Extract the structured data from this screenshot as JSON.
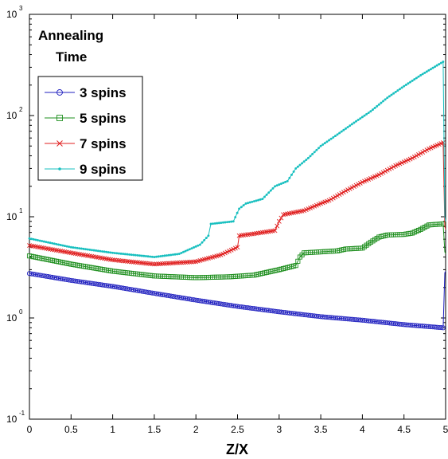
{
  "chart_data": {
    "type": "line",
    "title_line1": "Annealing",
    "title_line2": "Time",
    "xlabel": "Z/X",
    "ylabel": "",
    "xlim": [
      0,
      5
    ],
    "ylim": [
      0.1,
      1000
    ],
    "yscale": "log",
    "grid": false,
    "legend_position": "top-left",
    "x_ticks": [
      "0",
      "0.5",
      "1",
      "1.5",
      "2",
      "2.5",
      "3",
      "3.5",
      "4",
      "4.5",
      "5"
    ],
    "y_ticks": [
      {
        "base": "10",
        "exp": "-1",
        "value": 0.1
      },
      {
        "base": "10",
        "exp": "0",
        "value": 1
      },
      {
        "base": "10",
        "exp": "1",
        "value": 10
      },
      {
        "base": "10",
        "exp": "2",
        "value": 100
      },
      {
        "base": "10",
        "exp": "3",
        "value": 1000
      }
    ],
    "series": [
      {
        "name": "3 spins",
        "color": "#1f1fbf",
        "marker": "circle",
        "points": [
          [
            0,
            2.75
          ],
          [
            0.5,
            2.35
          ],
          [
            1,
            2.05
          ],
          [
            1.5,
            1.75
          ],
          [
            2,
            1.5
          ],
          [
            2.5,
            1.3
          ],
          [
            3,
            1.15
          ],
          [
            3.5,
            1.03
          ],
          [
            4,
            0.95
          ],
          [
            4.5,
            0.86
          ],
          [
            4.97,
            0.8
          ]
        ],
        "end_spike": [
          [
            4.97,
            0.8
          ],
          [
            4.99,
            2.8
          ],
          [
            5,
            2.9
          ]
        ]
      },
      {
        "name": "5 spins",
        "color": "#1f8f1f",
        "marker": "square",
        "points": [
          [
            0,
            4.1
          ],
          [
            0.5,
            3.4
          ],
          [
            1,
            2.9
          ],
          [
            1.5,
            2.6
          ],
          [
            2,
            2.5
          ],
          [
            2.4,
            2.55
          ],
          [
            2.7,
            2.65
          ],
          [
            3.0,
            3.0
          ],
          [
            3.2,
            3.3
          ],
          [
            3.25,
            4.0
          ],
          [
            3.3,
            4.4
          ],
          [
            3.7,
            4.6
          ],
          [
            3.8,
            4.8
          ],
          [
            4.0,
            4.9
          ],
          [
            4.1,
            5.6
          ],
          [
            4.2,
            6.3
          ],
          [
            4.3,
            6.6
          ],
          [
            4.5,
            6.7
          ],
          [
            4.6,
            6.9
          ],
          [
            4.7,
            7.5
          ],
          [
            4.8,
            8.3
          ],
          [
            4.97,
            8.5
          ]
        ],
        "end_spike": [
          [
            4.97,
            8.5
          ],
          [
            4.99,
            4.5
          ],
          [
            5,
            4.3
          ]
        ]
      },
      {
        "name": "7 spins",
        "color": "#e01f1f",
        "marker": "x",
        "points": [
          [
            0,
            5.2
          ],
          [
            0.5,
            4.4
          ],
          [
            1,
            3.75
          ],
          [
            1.5,
            3.4
          ],
          [
            2,
            3.6
          ],
          [
            2.3,
            4.2
          ],
          [
            2.5,
            5.0
          ],
          [
            2.52,
            6.5
          ],
          [
            2.7,
            6.8
          ],
          [
            2.95,
            7.3
          ],
          [
            3.0,
            9.0
          ],
          [
            3.05,
            10.5
          ],
          [
            3.3,
            11.5
          ],
          [
            3.5,
            13.5
          ],
          [
            3.6,
            14.5
          ],
          [
            3.8,
            18.0
          ],
          [
            4.0,
            22.0
          ],
          [
            4.2,
            26.0
          ],
          [
            4.4,
            32.0
          ],
          [
            4.6,
            38.0
          ],
          [
            4.8,
            47.0
          ],
          [
            4.97,
            54.0
          ]
        ],
        "end_spike": [
          [
            4.97,
            54.0
          ],
          [
            4.99,
            8.0
          ],
          [
            5,
            7.5
          ]
        ]
      },
      {
        "name": "9 spins",
        "color": "#17bfbf",
        "marker": "dot",
        "points": [
          [
            0,
            6.1
          ],
          [
            0.5,
            5.0
          ],
          [
            1,
            4.4
          ],
          [
            1.5,
            4.0
          ],
          [
            1.8,
            4.3
          ],
          [
            2.05,
            5.3
          ],
          [
            2.15,
            6.5
          ],
          [
            2.18,
            8.5
          ],
          [
            2.45,
            9.0
          ],
          [
            2.52,
            12.0
          ],
          [
            2.6,
            13.5
          ],
          [
            2.8,
            15.0
          ],
          [
            2.95,
            20.0
          ],
          [
            3.1,
            22.5
          ],
          [
            3.2,
            30.0
          ],
          [
            3.35,
            38.0
          ],
          [
            3.5,
            50.0
          ],
          [
            3.7,
            65.0
          ],
          [
            3.9,
            85.0
          ],
          [
            4.1,
            110.0
          ],
          [
            4.3,
            150.0
          ],
          [
            4.5,
            195.0
          ],
          [
            4.7,
            250.0
          ],
          [
            4.97,
            340.0
          ]
        ],
        "end_spike": [
          [
            4.97,
            340.0
          ],
          [
            4.99,
            10.0
          ],
          [
            5,
            9.0
          ]
        ]
      }
    ]
  }
}
